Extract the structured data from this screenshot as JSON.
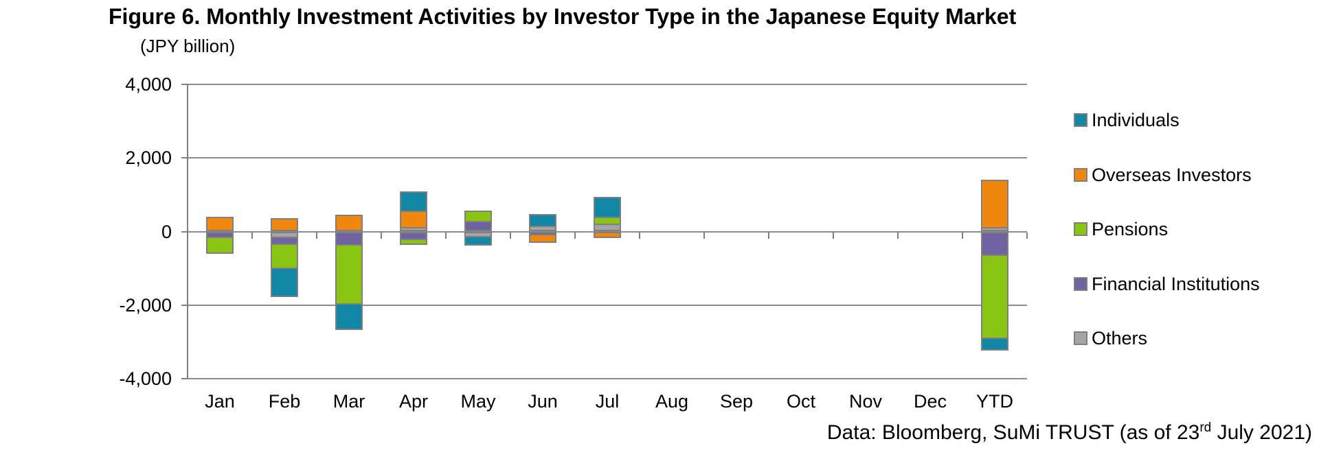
{
  "title": "Figure 6. Monthly Investment Activities by Investor Type in the Japanese Equity Market",
  "axis_unit": "(JPY billion)",
  "footer": {
    "text_before_sup": "Data: Bloomberg, SuMi TRUST (as of 23",
    "sup": "rd",
    "text_after_sup": " July 2021)"
  },
  "chart_data": {
    "type": "bar",
    "stacked": true,
    "title": "Figure 6. Monthly Investment Activities by Investor Type in the Japanese Equity Market",
    "ylabel": "(JPY billion)",
    "ylim": [
      -4000,
      4000
    ],
    "yticks": [
      4000,
      2000,
      0,
      -2000,
      -4000
    ],
    "ytick_labels": [
      "4,000",
      "2,000",
      "0",
      "-2,000",
      "-4,000"
    ],
    "grid": true,
    "legend_position": "right",
    "categories": [
      "Jan",
      "Feb",
      "Mar",
      "Apr",
      "May",
      "Jun",
      "Jul",
      "Aug",
      "Sep",
      "Oct",
      "Nov",
      "Dec",
      "YTD"
    ],
    "stack_order_from_zero": [
      "Others",
      "Financial Institutions",
      "Pensions",
      "Overseas Investors",
      "Individuals"
    ],
    "series": [
      {
        "name": "Individuals",
        "color": "#1187A5",
        "values": [
          0,
          -780,
          -700,
          530,
          -240,
          310,
          540,
          0,
          0,
          0,
          0,
          0,
          -310
        ]
      },
      {
        "name": "Overseas Investors",
        "color": "#F0870E",
        "values": [
          400,
          370,
          460,
          440,
          0,
          -190,
          -170,
          0,
          0,
          0,
          0,
          0,
          1270
        ]
      },
      {
        "name": "Pensions",
        "color": "#8AC513",
        "values": [
          -440,
          -640,
          -1590,
          -140,
          280,
          0,
          190,
          0,
          0,
          0,
          0,
          0,
          -2250
        ]
      },
      {
        "name": "Financial Institutions",
        "color": "#6F63A1",
        "values": [
          -170,
          -200,
          -390,
          -230,
          280,
          -110,
          0,
          0,
          0,
          0,
          0,
          0,
          -670
        ]
      },
      {
        "name": "Others",
        "color": "#A5A5A5",
        "values": [
          0,
          -170,
          0,
          130,
          -150,
          160,
          210,
          0,
          0,
          0,
          0,
          0,
          130
        ]
      }
    ]
  }
}
